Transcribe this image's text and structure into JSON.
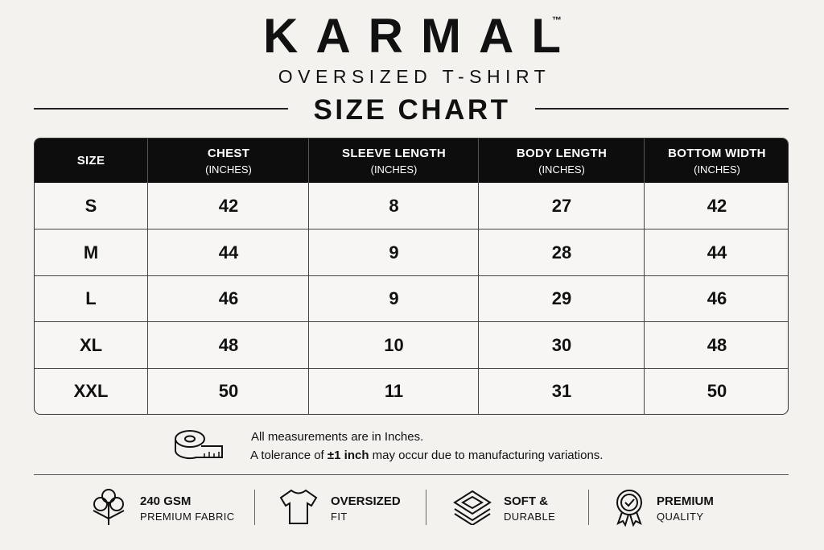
{
  "header": {
    "brand": "KARMAL",
    "trademark": "™",
    "subtitle": "OVERSIZED T-SHIRT",
    "title": "SIZE CHART"
  },
  "table": {
    "columns": [
      {
        "label": "SIZE"
      },
      {
        "label": "CHEST",
        "unit": "(INCHES)"
      },
      {
        "label": "SLEEVE LENGTH",
        "unit": "(INCHES)"
      },
      {
        "label": "BODY LENGTH",
        "unit": "(INCHES)"
      },
      {
        "label": "BOTTOM WIDTH",
        "unit": "(INCHES)"
      }
    ],
    "rows": [
      [
        "S",
        42,
        8,
        27,
        42
      ],
      [
        "M",
        44,
        9,
        28,
        44
      ],
      [
        "L",
        46,
        9,
        29,
        46
      ],
      [
        "XL",
        48,
        10,
        30,
        48
      ],
      [
        "XXL",
        50,
        11,
        31,
        50
      ]
    ]
  },
  "notes": {
    "line1": "All measurements are in Inches.",
    "line2": [
      "A tolerance of",
      "±1 inch",
      "may occur due to manufacturing variations."
    ]
  },
  "features": [
    {
      "title": "240 GSM",
      "subtitle": "PREMIUM FABRIC"
    },
    {
      "title": "OVERSIZED",
      "subtitle": "FIT"
    },
    {
      "title": "SOFT &",
      "subtitle": "DURABLE"
    },
    {
      "title": "PREMIUM",
      "subtitle": "QUALITY"
    }
  ]
}
